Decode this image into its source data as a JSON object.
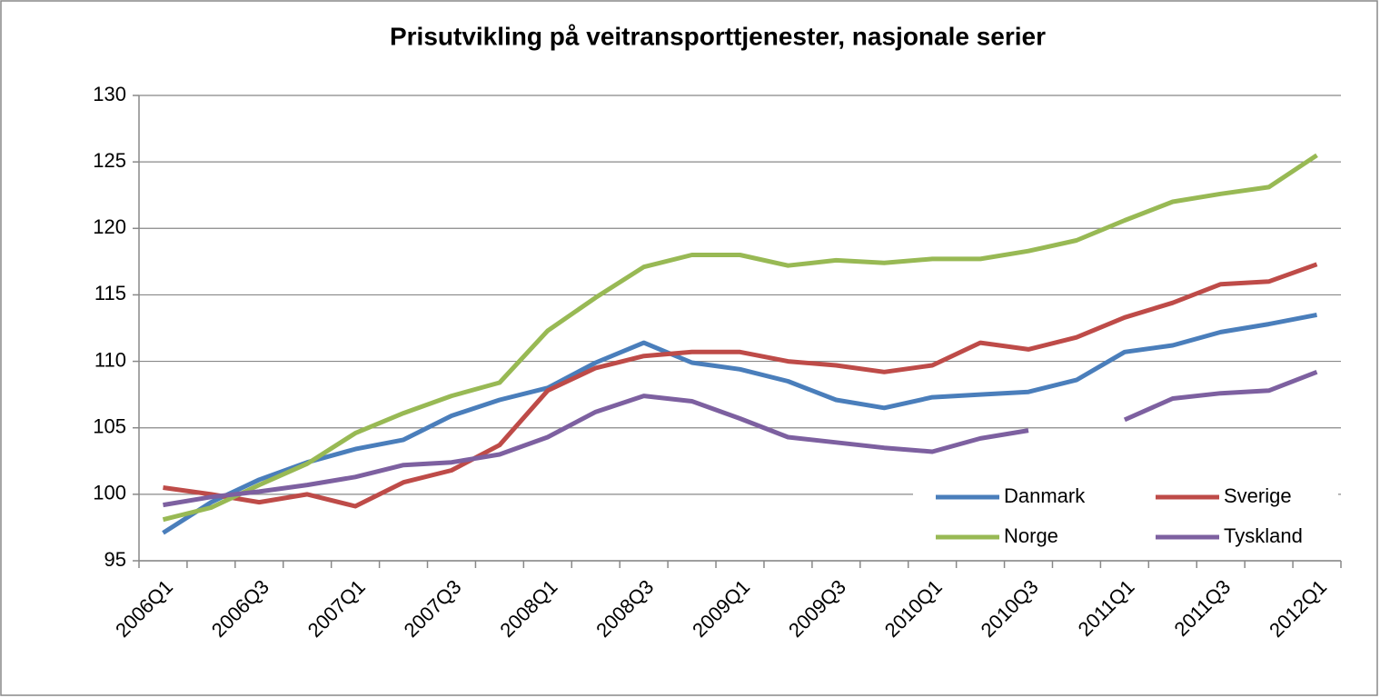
{
  "chart_data": {
    "type": "line",
    "title": "Prisutvikling på veitransporttjenester, nasjonale serier",
    "categories": [
      "2006Q1",
      null,
      "2006Q3",
      null,
      "2007Q1",
      null,
      "2007Q3",
      null,
      "2008Q1",
      null,
      "2008Q3",
      null,
      "2009Q1",
      null,
      "2009Q3",
      null,
      "2010Q1",
      null,
      "2010Q3",
      null,
      "2011Q1",
      null,
      "2011Q3",
      null,
      "2012Q1"
    ],
    "series": [
      {
        "name": "Danmark",
        "color": "#4a7ebb",
        "values": [
          97.1,
          99.4,
          101.1,
          102.4,
          103.4,
          104.1,
          105.9,
          107.1,
          108.0,
          109.9,
          111.4,
          109.9,
          109.4,
          108.5,
          107.1,
          106.5,
          107.3,
          107.5,
          107.7,
          108.6,
          110.7,
          111.2,
          112.2,
          112.8,
          113.5
        ]
      },
      {
        "name": "Sverige",
        "color": "#be4b48",
        "values": [
          100.5,
          100.0,
          99.4,
          100.0,
          99.1,
          100.9,
          101.8,
          103.7,
          107.8,
          109.5,
          110.4,
          110.7,
          110.7,
          110.0,
          109.7,
          109.2,
          109.7,
          111.4,
          110.9,
          111.8,
          113.3,
          114.4,
          115.8,
          116.0,
          117.3
        ]
      },
      {
        "name": "Norge",
        "color": "#98b954",
        "values": [
          98.1,
          99.0,
          100.7,
          102.3,
          104.6,
          106.1,
          107.4,
          108.4,
          112.3,
          114.8,
          117.1,
          118.0,
          118.0,
          117.2,
          117.6,
          117.4,
          117.7,
          117.7,
          118.3,
          119.1,
          120.6,
          122.0,
          122.6,
          123.1,
          125.5
        ]
      },
      {
        "name": "Tyskland",
        "color": "#7d60a0",
        "values": [
          99.2,
          99.8,
          100.2,
          100.7,
          101.3,
          102.2,
          102.4,
          103.0,
          104.3,
          106.2,
          107.4,
          107.0,
          105.7,
          104.3,
          103.9,
          103.5,
          103.2,
          104.2,
          104.8,
          null,
          105.6,
          107.2,
          107.6,
          107.8,
          109.2
        ]
      }
    ],
    "ylim": [
      95,
      130
    ],
    "yticks": [
      95,
      100,
      105,
      110,
      115,
      120,
      125,
      130
    ],
    "grid": true,
    "legend": "lower right"
  }
}
